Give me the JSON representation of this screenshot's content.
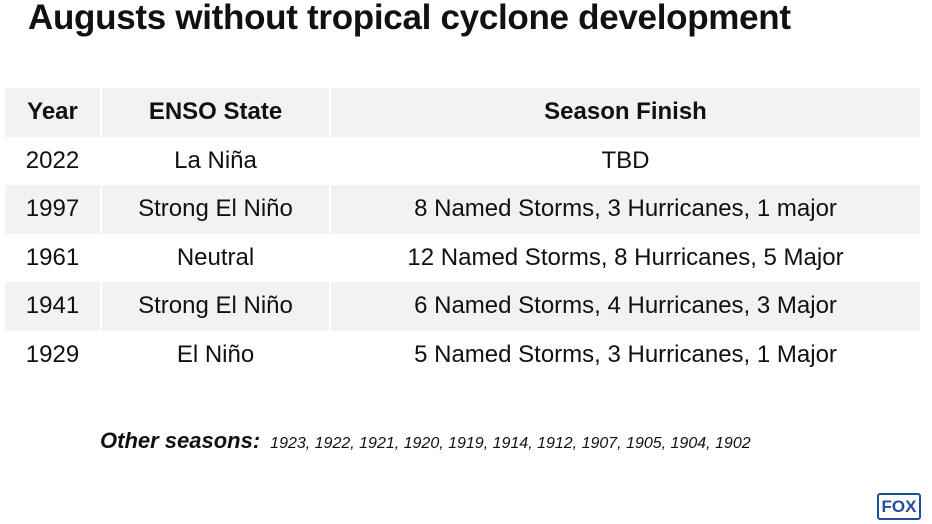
{
  "header": {
    "title": "Augusts without tropical cyclone development"
  },
  "table": {
    "columns": [
      "Year",
      "ENSO State",
      "Season Finish"
    ],
    "rows": [
      [
        "2022",
        "La Niña",
        "TBD"
      ],
      [
        "1997",
        "Strong El Niño",
        "8 Named Storms, 3 Hurricanes, 1 major"
      ],
      [
        "1961",
        "Neutral",
        "12 Named Storms, 8 Hurricanes, 5 Major"
      ],
      [
        "1941",
        "Strong El Niño",
        "6 Named Storms, 4 Hurricanes, 3 Major"
      ],
      [
        "1929",
        "El Niño",
        "5 Named Storms, 3 Hurricanes, 1 Major"
      ]
    ]
  },
  "footer": {
    "label": "Other seasons:",
    "list": "1923, 1922, 1921, 1920, 1919, 1914, 1912, 1907, 1905, 1904, 1902"
  },
  "logo": {
    "text": "FOX"
  }
}
